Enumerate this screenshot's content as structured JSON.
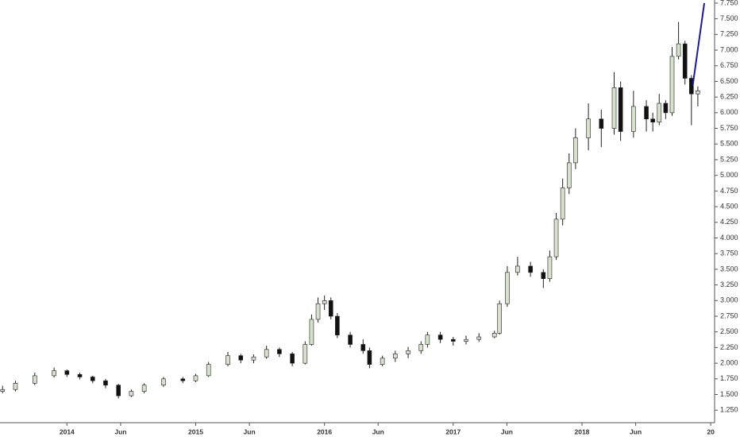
{
  "chart_data": {
    "type": "candlestick",
    "x": [
      2013.5,
      2013.6,
      2013.75,
      2013.9,
      2014.0,
      2014.1,
      2014.2,
      2014.3,
      2014.4,
      2014.5,
      2014.6,
      2014.75,
      2014.9,
      2015.0,
      2015.1,
      2015.25,
      2015.35,
      2015.45,
      2015.55,
      2015.65,
      2015.75,
      2015.85,
      2015.9,
      2015.95,
      2016.0,
      2016.05,
      2016.1,
      2016.2,
      2016.3,
      2016.35,
      2016.45,
      2016.55,
      2016.65,
      2016.75,
      2016.8,
      2016.9,
      2017.0,
      2017.1,
      2017.2,
      2017.32,
      2017.36,
      2017.42,
      2017.5,
      2017.6,
      2017.7,
      2017.75,
      2017.8,
      2017.85,
      2017.9,
      2017.95,
      2018.05,
      2018.15,
      2018.25,
      2018.3,
      2018.4,
      2018.5,
      2018.55,
      2018.6,
      2018.65,
      2018.7,
      2018.75,
      2018.8,
      2018.85,
      2018.9
    ],
    "open": [
      1.55,
      1.58,
      1.68,
      1.8,
      1.88,
      1.82,
      1.78,
      1.72,
      1.65,
      1.48,
      1.55,
      1.65,
      1.75,
      1.72,
      1.8,
      1.98,
      2.12,
      2.05,
      2.1,
      2.22,
      2.15,
      2.0,
      2.3,
      2.7,
      2.95,
      3.0,
      2.75,
      2.45,
      2.3,
      2.2,
      1.98,
      2.08,
      2.15,
      2.2,
      2.3,
      2.45,
      2.38,
      2.35,
      2.38,
      2.42,
      2.48,
      2.95,
      3.45,
      3.55,
      3.45,
      3.35,
      3.7,
      4.3,
      4.8,
      5.2,
      5.6,
      5.9,
      5.75,
      6.4,
      5.7,
      6.1,
      5.9,
      5.85,
      6.15,
      6.0,
      6.9,
      7.1,
      6.55,
      6.3
    ],
    "high": [
      1.64,
      1.72,
      1.85,
      1.93,
      1.9,
      1.85,
      1.8,
      1.75,
      1.67,
      1.58,
      1.68,
      1.78,
      1.78,
      1.83,
      2.02,
      2.18,
      2.15,
      2.14,
      2.28,
      2.25,
      2.18,
      2.35,
      2.78,
      3.05,
      3.08,
      3.05,
      2.8,
      2.5,
      2.38,
      2.25,
      2.12,
      2.2,
      2.26,
      2.35,
      2.5,
      2.5,
      2.42,
      2.44,
      2.48,
      2.52,
      3.0,
      3.55,
      3.7,
      3.62,
      3.5,
      3.8,
      4.4,
      4.95,
      5.35,
      5.75,
      6.15,
      6.05,
      6.65,
      6.5,
      6.35,
      6.2,
      6.0,
      6.3,
      6.2,
      7.05,
      7.45,
      7.15,
      6.6,
      6.42
    ],
    "low": [
      1.52,
      1.55,
      1.65,
      1.77,
      1.78,
      1.74,
      1.68,
      1.6,
      1.44,
      1.46,
      1.52,
      1.62,
      1.68,
      1.7,
      1.78,
      1.95,
      2.0,
      2.0,
      2.07,
      2.1,
      1.95,
      1.98,
      2.28,
      2.65,
      2.85,
      2.7,
      2.4,
      2.25,
      2.15,
      1.92,
      1.95,
      2.02,
      2.08,
      2.15,
      2.25,
      2.32,
      2.28,
      2.3,
      2.34,
      2.4,
      2.46,
      2.9,
      3.4,
      3.38,
      3.2,
      3.3,
      3.65,
      4.2,
      4.7,
      5.1,
      5.4,
      5.45,
      5.65,
      5.55,
      5.6,
      5.7,
      5.7,
      5.8,
      5.9,
      5.95,
      6.85,
      6.45,
      5.8,
      6.1
    ],
    "close": [
      1.58,
      1.68,
      1.8,
      1.88,
      1.82,
      1.78,
      1.72,
      1.65,
      1.48,
      1.55,
      1.65,
      1.75,
      1.72,
      1.8,
      1.98,
      2.12,
      2.05,
      2.1,
      2.22,
      2.15,
      2.0,
      2.3,
      2.7,
      2.95,
      3.0,
      2.75,
      2.45,
      2.3,
      2.2,
      1.98,
      2.08,
      2.15,
      2.2,
      2.3,
      2.45,
      2.38,
      2.35,
      2.38,
      2.42,
      2.48,
      2.95,
      3.45,
      3.55,
      3.45,
      3.35,
      3.7,
      4.3,
      4.8,
      5.2,
      5.6,
      5.9,
      5.75,
      6.4,
      5.7,
      6.1,
      5.9,
      5.85,
      6.15,
      6.0,
      6.9,
      7.1,
      6.55,
      6.3,
      6.35
    ],
    "up_color": "#d6e2cc",
    "down_color": "#111111",
    "trendline": {
      "x": [
        2018.86,
        2018.95
      ],
      "values": [
        6.43,
        7.75
      ],
      "color": "#1c1c8f"
    },
    "xlim": [
      2013.48,
      2019.03
    ],
    "xticks": [
      2014,
      {
        "value": 2014.417,
        "label": "Jun"
      },
      2015,
      {
        "value": 2015.417,
        "label": "Jun"
      },
      2016,
      {
        "value": 2016.417,
        "label": "Jun"
      },
      2017,
      {
        "value": 2017.417,
        "label": "Jun"
      },
      2018,
      {
        "value": 2018.417,
        "label": "Jun"
      },
      {
        "value": 2019,
        "label": "20"
      }
    ],
    "ylim": [
      1.05,
      7.8
    ],
    "yticks": [
      {
        "value": 1.25,
        "label": "1.250"
      },
      {
        "value": 1.5,
        "label": "1.500"
      },
      {
        "value": 1.75,
        "label": "1.750"
      },
      {
        "value": 2,
        "label": "2.000"
      },
      {
        "value": 2.25,
        "label": "2.250"
      },
      {
        "value": 2.5,
        "label": "2.500"
      },
      {
        "value": 2.75,
        "label": "2.750"
      },
      {
        "value": 3,
        "label": "3.000"
      },
      {
        "value": 3.25,
        "label": "3.250"
      },
      {
        "value": 3.5,
        "label": "3.500"
      },
      {
        "value": 3.75,
        "label": "3.750"
      },
      {
        "value": 4,
        "label": "4.000"
      },
      {
        "value": 4.25,
        "label": "4.250"
      },
      {
        "value": 4.5,
        "label": "4.500"
      },
      {
        "value": 4.75,
        "label": "4.750"
      },
      {
        "value": 5,
        "label": "5.000"
      },
      {
        "value": 5.25,
        "label": "5.250"
      },
      {
        "value": 5.5,
        "label": "5.500"
      },
      {
        "value": 5.75,
        "label": "5.750"
      },
      {
        "value": 6,
        "label": "6.000"
      },
      {
        "value": 6.25,
        "label": "6.250"
      },
      {
        "value": 6.5,
        "label": "6.500"
      },
      {
        "value": 6.75,
        "label": "6.750"
      },
      {
        "value": 7,
        "label": "7.000"
      },
      {
        "value": 7.25,
        "label": "7.250"
      },
      {
        "value": 7.5,
        "label": "7.500"
      },
      {
        "value": 7.75,
        "label": "7.750"
      }
    ],
    "grid": false
  }
}
